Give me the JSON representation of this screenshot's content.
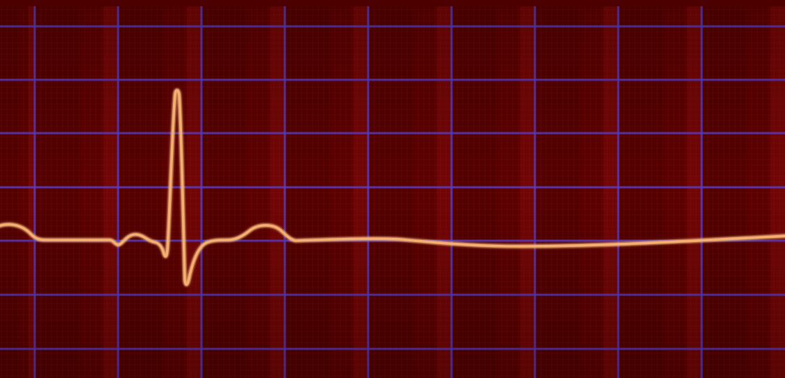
{
  "colors": {
    "top_bar": "#3d6f9a",
    "paper_base": "#5c0000",
    "paper_column_light": "#7a0707",
    "paper_column_dark": "#4e0000",
    "minor_grid": "#8a1a1a",
    "major_grid": "#5a3cc8",
    "trace": "#f5b070",
    "trace_glow": "#ffd9a8"
  },
  "scene": {
    "subject": "ecg-monitor-strip",
    "trace_pattern": "single-heartbeat-then-flatline",
    "beats_shown": 1
  }
}
